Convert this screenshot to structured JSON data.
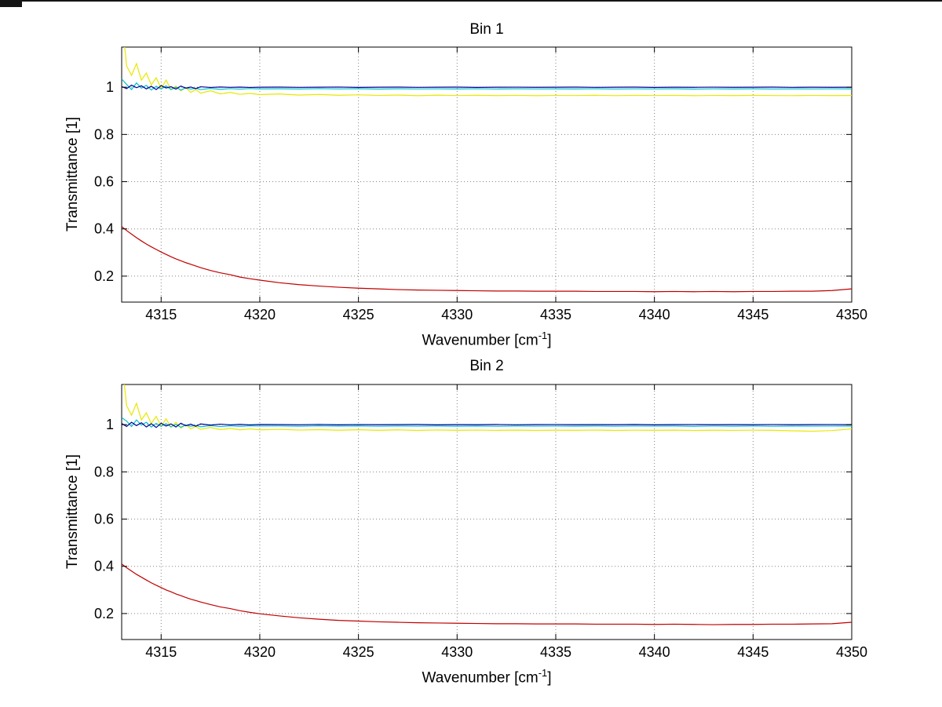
{
  "chart_data": [
    {
      "type": "line",
      "title": "Bin 1",
      "xlabel": "Wavenumber [cm⁻¹]",
      "xlabel_pre": "Wavenumber [cm",
      "xlabel_sup": "-1",
      "xlabel_end": "]",
      "ylabel": "Transmittance [1]",
      "xlim": [
        4313,
        4350
      ],
      "ylim": [
        0.09,
        1.17
      ],
      "xticks": [
        4315,
        4320,
        4325,
        4330,
        4335,
        4340,
        4345,
        4350
      ],
      "xtick_labels": [
        "4315",
        "4320",
        "4325",
        "4330",
        "4335",
        "4340",
        "4345",
        "4350"
      ],
      "yticks": [
        0.2,
        0.4,
        0.6,
        0.8,
        1
      ],
      "ytick_labels": [
        "0.2",
        "0.4",
        "0.6",
        "0.8",
        "1"
      ],
      "grid": true,
      "x": [
        4313,
        4313.25,
        4313.5,
        4313.75,
        4314,
        4314.25,
        4314.5,
        4314.75,
        4315,
        4315.25,
        4315.5,
        4315.75,
        4316,
        4316.25,
        4316.5,
        4316.75,
        4317,
        4317.5,
        4318,
        4318.5,
        4319,
        4319.5,
        4320,
        4321,
        4322,
        4323,
        4324,
        4325,
        4326,
        4327,
        4328,
        4329,
        4330,
        4331,
        4332,
        4333,
        4334,
        4335,
        4336,
        4337,
        4338,
        4339,
        4340,
        4341,
        4342,
        4343,
        4344,
        4345,
        4346,
        4347,
        4348,
        4349,
        4350
      ],
      "series": [
        {
          "name": "yellow-line",
          "color": "#e8e800",
          "y": [
            1.3,
            1.09,
            1.05,
            1.1,
            1.03,
            1.06,
            1.01,
            1.04,
            0.995,
            1.03,
            0.99,
            1.005,
            0.985,
            0.998,
            0.978,
            0.99,
            0.975,
            0.985,
            0.972,
            0.978,
            0.97,
            0.974,
            0.969,
            0.9715,
            0.967,
            0.9695,
            0.966,
            0.968,
            0.9655,
            0.967,
            0.9645,
            0.9665,
            0.965,
            0.966,
            0.9648,
            0.9658,
            0.9645,
            0.9655,
            0.965,
            0.966,
            0.9646,
            0.9656,
            0.965,
            0.9658,
            0.9644,
            0.9654,
            0.9648,
            0.9656,
            0.965,
            0.9646,
            0.9654,
            0.9648,
            0.9652
          ]
        },
        {
          "name": "cyan-line",
          "color": "#00c2cc",
          "y": [
            1.035,
            1.012,
            0.99,
            1.018,
            0.996,
            1.008,
            0.988,
            1.004,
            0.992,
            1.006,
            0.99,
            1.0,
            0.988,
            0.998,
            0.992,
            0.996,
            0.99,
            0.995,
            0.991,
            0.994,
            0.992,
            0.9945,
            0.993,
            0.9935,
            0.9925,
            0.994,
            0.9928,
            0.9938,
            0.9922,
            0.9935,
            0.9928,
            0.9932,
            0.9926,
            0.9936,
            0.9924,
            0.9934,
            0.9928,
            0.993,
            0.9926,
            0.9936,
            0.9924,
            0.9932,
            0.9928,
            0.9934,
            0.9922,
            0.9932,
            0.9926,
            0.9934,
            0.9924,
            0.993,
            0.9928,
            0.9932,
            0.993
          ]
        },
        {
          "name": "blue-line",
          "color": "#000096",
          "y": [
            1.003,
            0.994,
            1.009,
            0.998,
            1.006,
            0.993,
            1.004,
            0.99,
            1.007,
            0.997,
            1.002,
            0.992,
            1.005,
            0.996,
            1.001,
            0.994,
            1.002,
            0.999,
            1.001,
            0.9995,
            1.0005,
            0.999,
            1.0,
            1.0005,
            0.9995,
            1.0,
            1.0008,
            0.9992,
            1.0,
            1.0005,
            0.9995,
            1.0,
            1.0006,
            0.9994,
            1.0,
            1.0004,
            0.9996,
            1.0,
            1.0005,
            0.9995,
            1.0,
            1.0006,
            0.9994,
            1.0002,
            0.9998,
            1.0004,
            0.9996,
            1.0,
            1.0005,
            0.9995,
            1.0002,
            0.9998,
            1.0
          ]
        },
        {
          "name": "red-line",
          "color": "#c00000",
          "y": [
            0.41,
            0.393,
            0.378,
            0.363,
            0.349,
            0.336,
            0.324,
            0.313,
            0.302,
            0.292,
            0.282,
            0.273,
            0.265,
            0.257,
            0.25,
            0.243,
            0.236,
            0.224,
            0.214,
            0.206,
            0.196,
            0.189,
            0.183,
            0.172,
            0.164,
            0.158,
            0.153,
            0.149,
            0.146,
            0.143,
            0.141,
            0.14,
            0.139,
            0.138,
            0.137,
            0.137,
            0.136,
            0.136,
            0.136,
            0.135,
            0.135,
            0.135,
            0.134,
            0.135,
            0.134,
            0.135,
            0.134,
            0.135,
            0.135,
            0.136,
            0.136,
            0.139,
            0.146
          ]
        }
      ]
    },
    {
      "type": "line",
      "title": "Bin 2",
      "xlabel": "Wavenumber [cm⁻¹]",
      "xlabel_pre": "Wavenumber [cm",
      "xlabel_sup": "-1",
      "xlabel_end": "]",
      "ylabel": "Transmittance [1]",
      "xlim": [
        4313,
        4350
      ],
      "ylim": [
        0.09,
        1.17
      ],
      "xticks": [
        4315,
        4320,
        4325,
        4330,
        4335,
        4340,
        4345,
        4350
      ],
      "xtick_labels": [
        "4315",
        "4320",
        "4325",
        "4330",
        "4335",
        "4340",
        "4345",
        "4350"
      ],
      "yticks": [
        0.2,
        0.4,
        0.6,
        0.8,
        1
      ],
      "ytick_labels": [
        "0.2",
        "0.4",
        "0.6",
        "0.8",
        "1"
      ],
      "grid": true,
      "x": [
        4313,
        4313.25,
        4313.5,
        4313.75,
        4314,
        4314.25,
        4314.5,
        4314.75,
        4315,
        4315.25,
        4315.5,
        4315.75,
        4316,
        4316.25,
        4316.5,
        4316.75,
        4317,
        4317.5,
        4318,
        4318.5,
        4319,
        4319.5,
        4320,
        4321,
        4322,
        4323,
        4324,
        4325,
        4326,
        4327,
        4328,
        4329,
        4330,
        4331,
        4332,
        4333,
        4334,
        4335,
        4336,
        4337,
        4338,
        4339,
        4340,
        4341,
        4342,
        4343,
        4344,
        4345,
        4346,
        4347,
        4348,
        4349,
        4350
      ],
      "series": [
        {
          "name": "yellow-line",
          "color": "#e8e800",
          "y": [
            1.28,
            1.08,
            1.04,
            1.09,
            1.02,
            1.05,
            1.005,
            1.035,
            0.992,
            1.025,
            0.988,
            1.01,
            0.985,
            1.0,
            0.982,
            0.992,
            0.98,
            0.988,
            0.979,
            0.984,
            0.978,
            0.982,
            0.978,
            0.98,
            0.977,
            0.979,
            0.9765,
            0.9785,
            0.976,
            0.978,
            0.9755,
            0.9775,
            0.976,
            0.977,
            0.9758,
            0.9768,
            0.9755,
            0.9765,
            0.976,
            0.977,
            0.9756,
            0.9766,
            0.976,
            0.9768,
            0.9754,
            0.9764,
            0.9758,
            0.9766,
            0.976,
            0.974,
            0.972,
            0.975,
            0.982
          ]
        },
        {
          "name": "cyan-line",
          "color": "#00c2cc",
          "y": [
            1.03,
            1.015,
            0.992,
            1.02,
            0.998,
            1.01,
            0.99,
            1.005,
            0.993,
            1.004,
            0.991,
            1.001,
            0.989,
            0.999,
            0.993,
            0.997,
            0.991,
            0.996,
            0.992,
            0.995,
            0.993,
            0.995,
            0.994,
            0.9945,
            0.9935,
            0.995,
            0.9938,
            0.9948,
            0.9932,
            0.9944,
            0.9936,
            0.9942,
            0.9934,
            0.9944,
            0.9932,
            0.9942,
            0.9936,
            0.994,
            0.9934,
            0.9944,
            0.9932,
            0.994,
            0.9936,
            0.9942,
            0.993,
            0.994,
            0.9934,
            0.9942,
            0.9932,
            0.9938,
            0.9936,
            0.994,
            0.9938
          ]
        },
        {
          "name": "blue-line",
          "color": "#000096",
          "y": [
            1.005,
            0.992,
            1.01,
            0.996,
            1.008,
            0.99,
            1.004,
            0.988,
            1.006,
            0.994,
            1.003,
            0.99,
            1.006,
            0.995,
            1.002,
            0.993,
            1.003,
            0.998,
            1.002,
            0.999,
            1.001,
            0.999,
            1.0005,
            1.0,
            0.9995,
            1.0008,
            0.9992,
            1.0004,
            0.9996,
            1.0,
            1.0006,
            0.9994,
            1.0002,
            0.9998,
            1.0005,
            0.9995,
            1.0,
            1.0004,
            0.9996,
            1.0002,
            0.9998,
            1.0006,
            0.9994,
            1.0,
            1.0004,
            0.9996,
            1.0002,
            0.9998,
            1.0004,
            0.9996,
            1.0,
            1.0003,
            0.9997
          ]
        },
        {
          "name": "red-line",
          "color": "#c00000",
          "y": [
            0.41,
            0.394,
            0.38,
            0.366,
            0.354,
            0.342,
            0.33,
            0.32,
            0.31,
            0.3,
            0.292,
            0.283,
            0.276,
            0.268,
            0.261,
            0.255,
            0.249,
            0.238,
            0.228,
            0.221,
            0.212,
            0.205,
            0.199,
            0.19,
            0.182,
            0.176,
            0.171,
            0.168,
            0.165,
            0.163,
            0.161,
            0.16,
            0.159,
            0.158,
            0.157,
            0.157,
            0.156,
            0.156,
            0.156,
            0.155,
            0.155,
            0.155,
            0.154,
            0.155,
            0.154,
            0.153,
            0.154,
            0.154,
            0.155,
            0.155,
            0.156,
            0.157,
            0.163
          ]
        }
      ]
    }
  ]
}
